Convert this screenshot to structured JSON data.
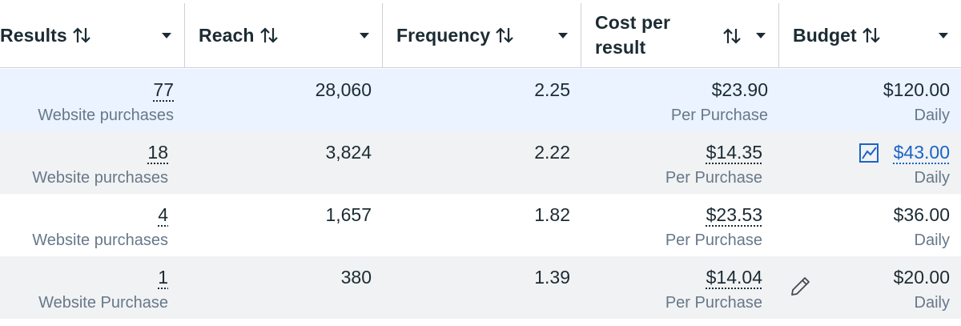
{
  "headers": {
    "results": "Results",
    "reach": "Reach",
    "frequency": "Frequency",
    "cost_line1": "Cost per",
    "cost_line2": "result",
    "budget": "Budget"
  },
  "icons": {
    "sort": "sort-arrows-icon",
    "dropdown": "caret-down-icon",
    "chart": "line-chart-icon",
    "edit": "pencil-icon"
  },
  "colors": {
    "selected_row": "#eaf3ff",
    "striped_row": "#f1f2f3",
    "link": "#1a64c8",
    "muted_text": "#67788a"
  },
  "rows": [
    {
      "results": "77",
      "results_label": "Website purchases",
      "reach": "28,060",
      "frequency": "2.25",
      "cost": "$23.90",
      "cost_label": "Per Purchase",
      "budget": "$120.00",
      "budget_label": "Daily"
    },
    {
      "results": "18",
      "results_label": "Website purchases",
      "reach": "3,824",
      "frequency": "2.22",
      "cost": "$14.35",
      "cost_label": "Per Purchase",
      "budget": "$43.00",
      "budget_label": "Daily"
    },
    {
      "results": "4",
      "results_label": "Website purchases",
      "reach": "1,657",
      "frequency": "1.82",
      "cost": "$23.53",
      "cost_label": "Per Purchase",
      "budget": "$36.00",
      "budget_label": "Daily"
    },
    {
      "results": "1",
      "results_label": "Website Purchase",
      "reach": "380",
      "frequency": "1.39",
      "cost": "$14.04",
      "cost_label": "Per Purchase",
      "budget": "$20.00",
      "budget_label": "Daily"
    }
  ]
}
